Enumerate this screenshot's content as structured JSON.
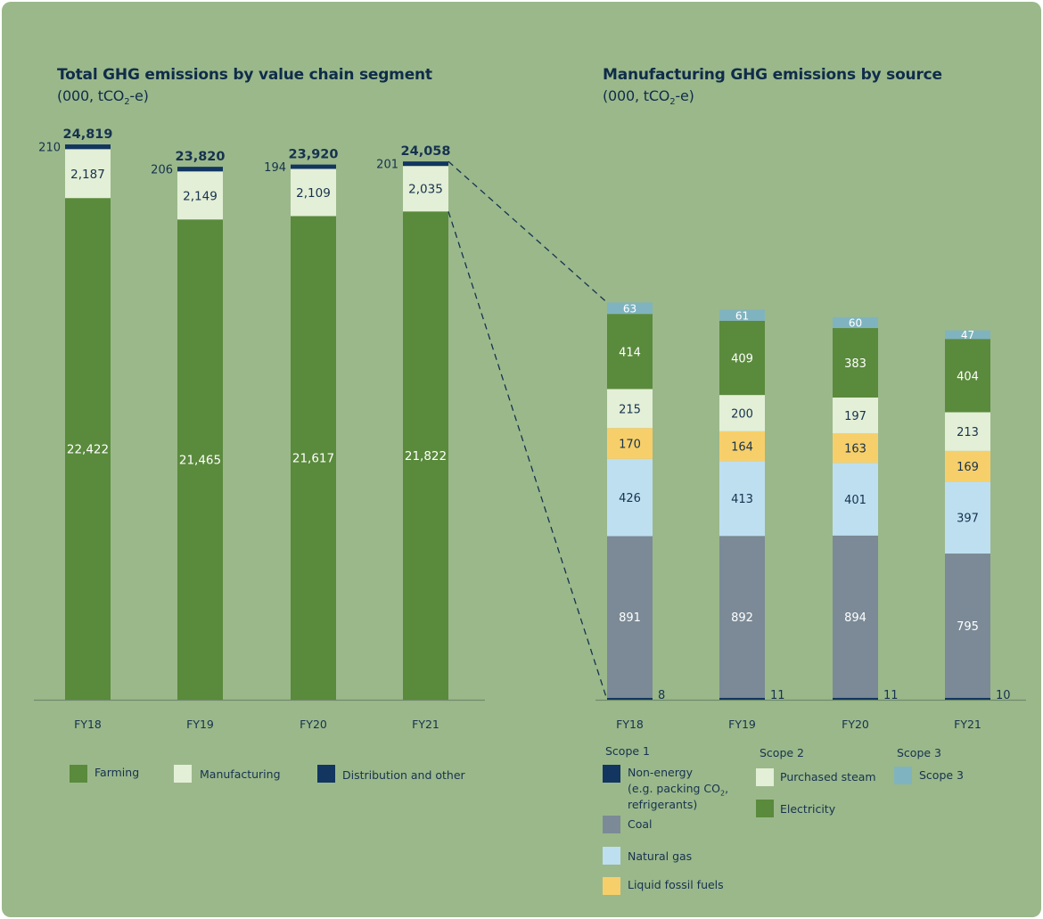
{
  "colors": {
    "farming": "#5a8a3c",
    "manufacturing": "#e3efd6",
    "distribution": "#123660",
    "non_energy": "#123660",
    "coal": "#7b8a96",
    "natural_gas": "#bedff0",
    "liquid_fossil": "#f7cf6a",
    "purchased_steam": "#e3efd6",
    "electricity": "#5a8a3c",
    "scope3": "#7fb3bf",
    "text_dark": "#16324f"
  },
  "titles": {
    "left": "Total GHG emissions by value chain segment",
    "left_unit": "(000, tCO2-e)",
    "right": "Manufacturing GHG emissions by source",
    "right_unit": "(000, tCO2-e)"
  },
  "chart_data": [
    {
      "type": "bar",
      "stacked": true,
      "title": "Total GHG emissions by value chain segment",
      "subtitle": "(000, tCO2-e)",
      "categories": [
        "FY18",
        "FY19",
        "FY20",
        "FY21"
      ],
      "series": [
        {
          "name": "Farming",
          "key": "farming",
          "values": [
            22422,
            21465,
            21617,
            21822
          ]
        },
        {
          "name": "Manufacturing",
          "key": "manufacturing",
          "values": [
            2187,
            2149,
            2109,
            2035
          ]
        },
        {
          "name": "Distribution and other",
          "key": "distribution",
          "values": [
            210,
            206,
            194,
            201
          ]
        }
      ],
      "totals": [
        24819,
        23820,
        23920,
        24058
      ],
      "labels": {
        "farming": [
          "22,422",
          "21,465",
          "21,617",
          "21,822"
        ],
        "manufacturing": [
          "2,187",
          "2,149",
          "2,109",
          "2,035"
        ],
        "distribution": [
          "210",
          "206",
          "194",
          "201"
        ],
        "totals": [
          "24,819",
          "23,820",
          "23,920",
          "24,058"
        ]
      },
      "legend_position": "bottom",
      "grid": false
    },
    {
      "type": "bar",
      "stacked": true,
      "title": "Manufacturing GHG emissions by source",
      "subtitle": "(000, tCO2-e)",
      "categories": [
        "FY18",
        "FY19",
        "FY20",
        "FY21"
      ],
      "series": [
        {
          "name": "Non-energy (e.g. packing CO2, refrigerants)",
          "key": "non_energy",
          "group": "Scope 1",
          "values": [
            8,
            11,
            11,
            10
          ]
        },
        {
          "name": "Coal",
          "key": "coal",
          "group": "Scope 1",
          "values": [
            891,
            892,
            894,
            795
          ]
        },
        {
          "name": "Natural gas",
          "key": "natural_gas",
          "group": "Scope 1",
          "values": [
            426,
            413,
            401,
            397
          ]
        },
        {
          "name": "Liquid fossil fuels",
          "key": "liquid_fossil",
          "group": "Scope 1",
          "values": [
            170,
            164,
            163,
            169
          ]
        },
        {
          "name": "Purchased steam",
          "key": "purchased_steam",
          "group": "Scope 2",
          "values": [
            215,
            200,
            197,
            213
          ]
        },
        {
          "name": "Electricity",
          "key": "electricity",
          "group": "Scope 2",
          "values": [
            414,
            409,
            383,
            404
          ]
        },
        {
          "name": "Scope 3",
          "key": "scope3",
          "group": "Scope 3",
          "values": [
            63,
            61,
            60,
            47
          ]
        }
      ],
      "legend_position": "bottom",
      "grid": false
    }
  ],
  "legend_left": [
    {
      "label": "Farming",
      "key": "farming"
    },
    {
      "label": "Manufacturing",
      "key": "manufacturing"
    },
    {
      "label": "Distribution and other",
      "key": "distribution"
    }
  ],
  "legend_right": {
    "scope1_heading": "Scope 1",
    "scope2_heading": "Scope 2",
    "scope3_heading": "Scope 3",
    "non_energy_line1": "Non-energy",
    "non_energy_line2": "(e.g. packing CO2,",
    "non_energy_line3": "refrigerants)",
    "coal": "Coal",
    "natural_gas": "Natural gas",
    "liquid_fossil": "Liquid fossil fuels",
    "purchased_steam": "Purchased steam",
    "electricity": "Electricity",
    "scope3": "Scope 3"
  }
}
